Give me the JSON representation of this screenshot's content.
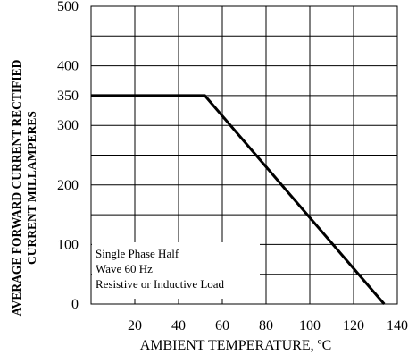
{
  "chart_data": {
    "type": "line",
    "xlabel": "AMBIENT TEMPERATURE, ºC",
    "ylabel_lines": [
      "AVERAGE FORWARD CURRENT RECTIFIED",
      "CURRENT MILLAMPERES"
    ],
    "x_ticks": [
      20,
      40,
      60,
      80,
      100,
      120,
      140
    ],
    "y_ticks": [
      0,
      100,
      200,
      300,
      350,
      400,
      500
    ],
    "xlim": [
      0,
      140
    ],
    "ylim": [
      0,
      500
    ],
    "grid": true,
    "series": [
      {
        "x": [
          0,
          52,
          134
        ],
        "y": [
          350,
          350,
          0
        ]
      }
    ],
    "annotation_lines": [
      "Single Phase Half",
      "Wave 60 Hz",
      "Resistive or Inductive Load"
    ]
  }
}
